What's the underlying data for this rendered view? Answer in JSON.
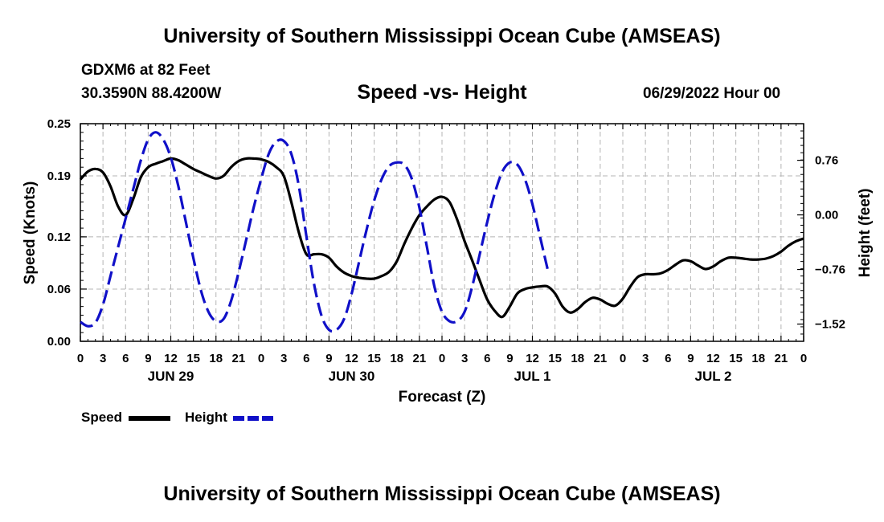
{
  "page": {
    "title_top": "University of Southern Mississippi Ocean Cube (AMSEAS)",
    "title_bottom": "University of Southern Mississippi Ocean Cube (AMSEAS)",
    "station": "GDXM6 at 82 Feet",
    "location": "30.3590N  88.4200W",
    "subtitle": "Speed -vs- Height",
    "date": "06/29/2022 Hour 00"
  },
  "legend": {
    "speed_label": "Speed",
    "height_label": "Height"
  },
  "colors": {
    "speed": "#000000",
    "height": "#1010c8",
    "grid": "#b4b4b4"
  },
  "chart_data": {
    "type": "line",
    "title": "Speed -vs- Height",
    "xlabel": "Forecast (Z)",
    "ylabel_left": "Speed (Knots)",
    "ylabel_right": "Height (feet)",
    "x_range_hours": [
      0,
      96
    ],
    "x_ticks": [
      0,
      3,
      6,
      9,
      12,
      15,
      18,
      21,
      24,
      27,
      30,
      33,
      36,
      39,
      42,
      45,
      48,
      51,
      54,
      57,
      60,
      63,
      66,
      69,
      72,
      75,
      78,
      81,
      84,
      87,
      90,
      93,
      96
    ],
    "x_tick_labels": [
      "0",
      "3",
      "6",
      "9",
      "12",
      "15",
      "18",
      "21",
      "0",
      "3",
      "6",
      "9",
      "12",
      "15",
      "18",
      "21",
      "0",
      "3",
      "6",
      "9",
      "12",
      "15",
      "18",
      "21",
      "0",
      "3",
      "6",
      "9",
      "12",
      "15",
      "18",
      "21",
      "0"
    ],
    "date_labels": [
      {
        "hour": 12,
        "label": "JUN 29"
      },
      {
        "hour": 36,
        "label": "JUN 30"
      },
      {
        "hour": 60,
        "label": "JUL 1"
      },
      {
        "hour": 84,
        "label": "JUL 2"
      }
    ],
    "y_left_range": [
      0,
      0.25
    ],
    "y_left_ticks": [
      0.0,
      0.06,
      0.12,
      0.19,
      0.25
    ],
    "y_left_tick_labels": [
      "0.00",
      "0.06",
      "0.12",
      "0.19",
      "0.25"
    ],
    "y_right_range": [
      -1.76,
      1.27
    ],
    "y_right_ticks": [
      -1.52,
      -0.76,
      0.0,
      0.76
    ],
    "y_right_tick_labels": [
      "−1.52",
      "−0.76",
      "0.00",
      "0.76"
    ],
    "grid": true,
    "series": [
      {
        "name": "Speed",
        "axis": "left",
        "style": "solid",
        "points": [
          [
            0,
            0.186
          ],
          [
            1,
            0.195
          ],
          [
            2,
            0.198
          ],
          [
            3,
            0.194
          ],
          [
            4,
            0.178
          ],
          [
            5,
            0.155
          ],
          [
            6,
            0.145
          ],
          [
            7,
            0.163
          ],
          [
            8,
            0.188
          ],
          [
            9,
            0.2
          ],
          [
            10,
            0.204
          ],
          [
            11,
            0.207
          ],
          [
            12,
            0.21
          ],
          [
            13,
            0.208
          ],
          [
            14,
            0.203
          ],
          [
            15,
            0.198
          ],
          [
            16,
            0.194
          ],
          [
            17,
            0.19
          ],
          [
            18,
            0.187
          ],
          [
            19,
            0.19
          ],
          [
            20,
            0.2
          ],
          [
            21,
            0.207
          ],
          [
            22,
            0.21
          ],
          [
            23,
            0.21
          ],
          [
            24,
            0.209
          ],
          [
            25,
            0.206
          ],
          [
            26,
            0.2
          ],
          [
            27,
            0.19
          ],
          [
            28,
            0.16
          ],
          [
            29,
            0.125
          ],
          [
            30,
            0.1
          ],
          [
            31,
            0.1
          ],
          [
            32,
            0.1
          ],
          [
            33,
            0.096
          ],
          [
            34,
            0.086
          ],
          [
            35,
            0.079
          ],
          [
            36,
            0.075
          ],
          [
            37,
            0.073
          ],
          [
            38,
            0.072
          ],
          [
            39,
            0.072
          ],
          [
            40,
            0.075
          ],
          [
            41,
            0.08
          ],
          [
            42,
            0.092
          ],
          [
            43,
            0.112
          ],
          [
            44,
            0.13
          ],
          [
            45,
            0.145
          ],
          [
            46,
            0.155
          ],
          [
            47,
            0.163
          ],
          [
            48,
            0.166
          ],
          [
            49,
            0.16
          ],
          [
            50,
            0.14
          ],
          [
            51,
            0.115
          ],
          [
            52,
            0.093
          ],
          [
            53,
            0.07
          ],
          [
            54,
            0.048
          ],
          [
            55,
            0.035
          ],
          [
            56,
            0.028
          ],
          [
            57,
            0.04
          ],
          [
            58,
            0.055
          ],
          [
            59,
            0.06
          ],
          [
            60,
            0.062
          ],
          [
            61,
            0.063
          ],
          [
            62,
            0.063
          ],
          [
            63,
            0.055
          ],
          [
            64,
            0.04
          ],
          [
            65,
            0.033
          ],
          [
            66,
            0.037
          ],
          [
            67,
            0.045
          ],
          [
            68,
            0.05
          ],
          [
            69,
            0.048
          ],
          [
            70,
            0.043
          ],
          [
            71,
            0.041
          ],
          [
            72,
            0.049
          ],
          [
            73,
            0.063
          ],
          [
            74,
            0.074
          ],
          [
            75,
            0.077
          ],
          [
            76,
            0.077
          ],
          [
            77,
            0.078
          ],
          [
            78,
            0.082
          ],
          [
            79,
            0.088
          ],
          [
            80,
            0.093
          ],
          [
            81,
            0.092
          ],
          [
            82,
            0.087
          ],
          [
            83,
            0.083
          ],
          [
            84,
            0.086
          ],
          [
            85,
            0.092
          ],
          [
            86,
            0.096
          ],
          [
            87,
            0.096
          ],
          [
            88,
            0.095
          ],
          [
            89,
            0.094
          ],
          [
            90,
            0.094
          ],
          [
            91,
            0.095
          ],
          [
            92,
            0.098
          ],
          [
            93,
            0.103
          ],
          [
            94,
            0.11
          ],
          [
            95,
            0.115
          ],
          [
            96,
            0.118
          ]
        ]
      },
      {
        "name": "Height",
        "axis": "right",
        "style": "dashed",
        "points": [
          [
            0,
            -1.49
          ],
          [
            1,
            -1.55
          ],
          [
            2,
            -1.5
          ],
          [
            3,
            -1.25
          ],
          [
            4,
            -0.85
          ],
          [
            5,
            -0.45
          ],
          [
            6,
            -0.05
          ],
          [
            7,
            0.35
          ],
          [
            8,
            0.75
          ],
          [
            9,
            1.05
          ],
          [
            10,
            1.15
          ],
          [
            11,
            1.05
          ],
          [
            12,
            0.8
          ],
          [
            13,
            0.4
          ],
          [
            14,
            -0.1
          ],
          [
            15,
            -0.6
          ],
          [
            16,
            -1.05
          ],
          [
            17,
            -1.35
          ],
          [
            18,
            -1.48
          ],
          [
            19,
            -1.45
          ],
          [
            20,
            -1.2
          ],
          [
            21,
            -0.8
          ],
          [
            22,
            -0.35
          ],
          [
            23,
            0.1
          ],
          [
            24,
            0.5
          ],
          [
            25,
            0.85
          ],
          [
            26,
            1.02
          ],
          [
            27,
            1.03
          ],
          [
            28,
            0.85
          ],
          [
            29,
            0.4
          ],
          [
            30,
            -0.3
          ],
          [
            31,
            -0.95
          ],
          [
            32,
            -1.4
          ],
          [
            33,
            -1.6
          ],
          [
            34,
            -1.6
          ],
          [
            35,
            -1.45
          ],
          [
            36,
            -1.1
          ],
          [
            37,
            -0.65
          ],
          [
            38,
            -0.2
          ],
          [
            39,
            0.2
          ],
          [
            40,
            0.5
          ],
          [
            41,
            0.68
          ],
          [
            42,
            0.73
          ],
          [
            43,
            0.7
          ],
          [
            44,
            0.5
          ],
          [
            45,
            0.1
          ],
          [
            46,
            -0.45
          ],
          [
            47,
            -1.0
          ],
          [
            48,
            -1.35
          ],
          [
            49,
            -1.48
          ],
          [
            50,
            -1.48
          ],
          [
            51,
            -1.35
          ],
          [
            52,
            -1.0
          ],
          [
            53,
            -0.55
          ],
          [
            54,
            -0.1
          ],
          [
            55,
            0.3
          ],
          [
            56,
            0.6
          ],
          [
            57,
            0.73
          ],
          [
            58,
            0.7
          ],
          [
            59,
            0.5
          ],
          [
            60,
            0.15
          ],
          [
            61,
            -0.3
          ],
          [
            62,
            -0.75
          ]
        ]
      }
    ]
  }
}
